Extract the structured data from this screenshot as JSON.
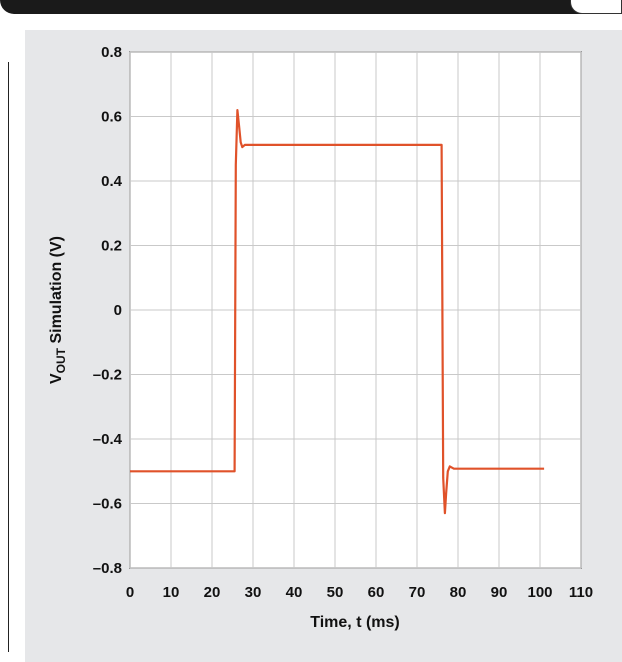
{
  "chart_data": {
    "type": "line",
    "title": "",
    "xlabel": "Time, t (ms)",
    "ylabel": {
      "prefix": "V",
      "subscript": "OUT",
      "suffix": " Simulation (V)"
    },
    "xlim": [
      0,
      110
    ],
    "ylim": [
      -0.8,
      0.8
    ],
    "x_ticks": [
      0,
      10,
      20,
      30,
      40,
      50,
      60,
      70,
      80,
      90,
      100,
      110
    ],
    "y_ticks": [
      0.8,
      0.6,
      0.4,
      0.2,
      0,
      -0.2,
      -0.4,
      -0.6,
      -0.8
    ],
    "x_tick_labels": [
      "0",
      "10",
      "20",
      "30",
      "40",
      "50",
      "60",
      "70",
      "80",
      "90",
      "100",
      "110"
    ],
    "y_tick_labels": [
      "0.8",
      "0.6",
      "0.4",
      "0.2",
      "0",
      "–0.2",
      "–0.4",
      "–0.6",
      "–0.8"
    ],
    "grid": true,
    "line_color": "#e0522a",
    "series": [
      {
        "x": [
          0,
          25.5,
          25.8,
          26.2,
          26.6,
          27.0,
          27.4,
          28.0,
          29.0,
          76.0,
          76.4,
          76.8,
          77.1,
          77.5,
          78.0,
          79.0,
          101
        ],
        "y": [
          -0.5,
          -0.5,
          0.45,
          0.62,
          0.57,
          0.52,
          0.505,
          0.512,
          0.512,
          0.512,
          -0.52,
          -0.63,
          -0.57,
          -0.5,
          -0.485,
          -0.492,
          -0.492
        ]
      }
    ]
  }
}
